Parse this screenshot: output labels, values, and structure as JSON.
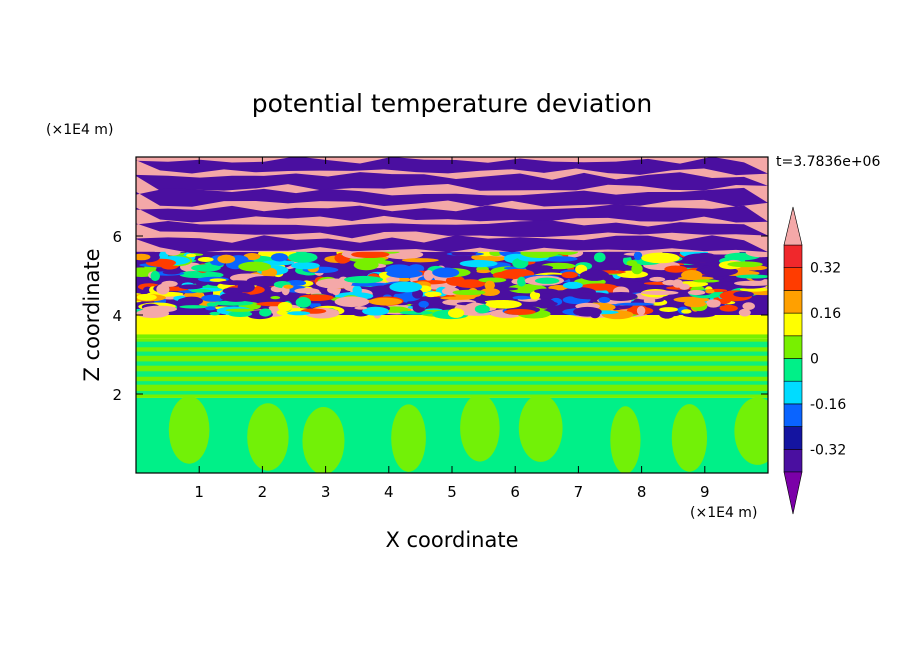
{
  "chart_data": {
    "type": "heatmap",
    "title": "potential temperature deviation",
    "xlabel": "X coordinate",
    "ylabel": "Z coordinate",
    "x_unit": "(×1E4 m)",
    "y_unit": "(×1E4 m)",
    "time_label": "t=3.7836e+06",
    "xlim": [
      0,
      10
    ],
    "ylim": [
      0,
      8
    ],
    "x_ticks": [
      1,
      2,
      3,
      4,
      5,
      6,
      7,
      8,
      9
    ],
    "y_ticks": [
      2,
      4,
      6
    ],
    "colorbar": {
      "levels": [
        -0.4,
        -0.32,
        -0.24,
        -0.16,
        -0.08,
        0,
        0.08,
        0.16,
        0.24,
        0.32,
        0.4
      ],
      "tick_labels": [
        "0.32",
        "0.16",
        "0",
        "-0.16",
        "-0.32"
      ],
      "tick_values": [
        0.32,
        0.16,
        0,
        -0.16,
        -0.32
      ],
      "colors": [
        "#7b00a8",
        "#4a0fa0",
        "#1414a0",
        "#0a64ff",
        "#00dcff",
        "#00f088",
        "#78f000",
        "#ffff00",
        "#ffa000",
        "#ff3c00",
        "#f0282c",
        "#f4a8a8"
      ]
    },
    "layers": [
      {
        "z": [
          0.0,
          1.9
        ],
        "dominant": "#00f088",
        "mixed": "#78f000",
        "pattern": "cells"
      },
      {
        "z": [
          1.9,
          3.4
        ],
        "dominant": "#78f000",
        "mixed": "#00f088",
        "pattern": "bands"
      },
      {
        "z": [
          3.4,
          4.0
        ],
        "dominant": "#ffff00",
        "mixed": "#78f000",
        "pattern": "smooth"
      },
      {
        "z": [
          4.0,
          5.6
        ],
        "dominant": "#4a0fa0",
        "mixed": "mixed",
        "pattern": "turbulent"
      },
      {
        "z": [
          5.6,
          8.0
        ],
        "dominant": "#f4a8a8",
        "mixed": "#4a0fa0",
        "pattern": "stripes"
      }
    ]
  }
}
